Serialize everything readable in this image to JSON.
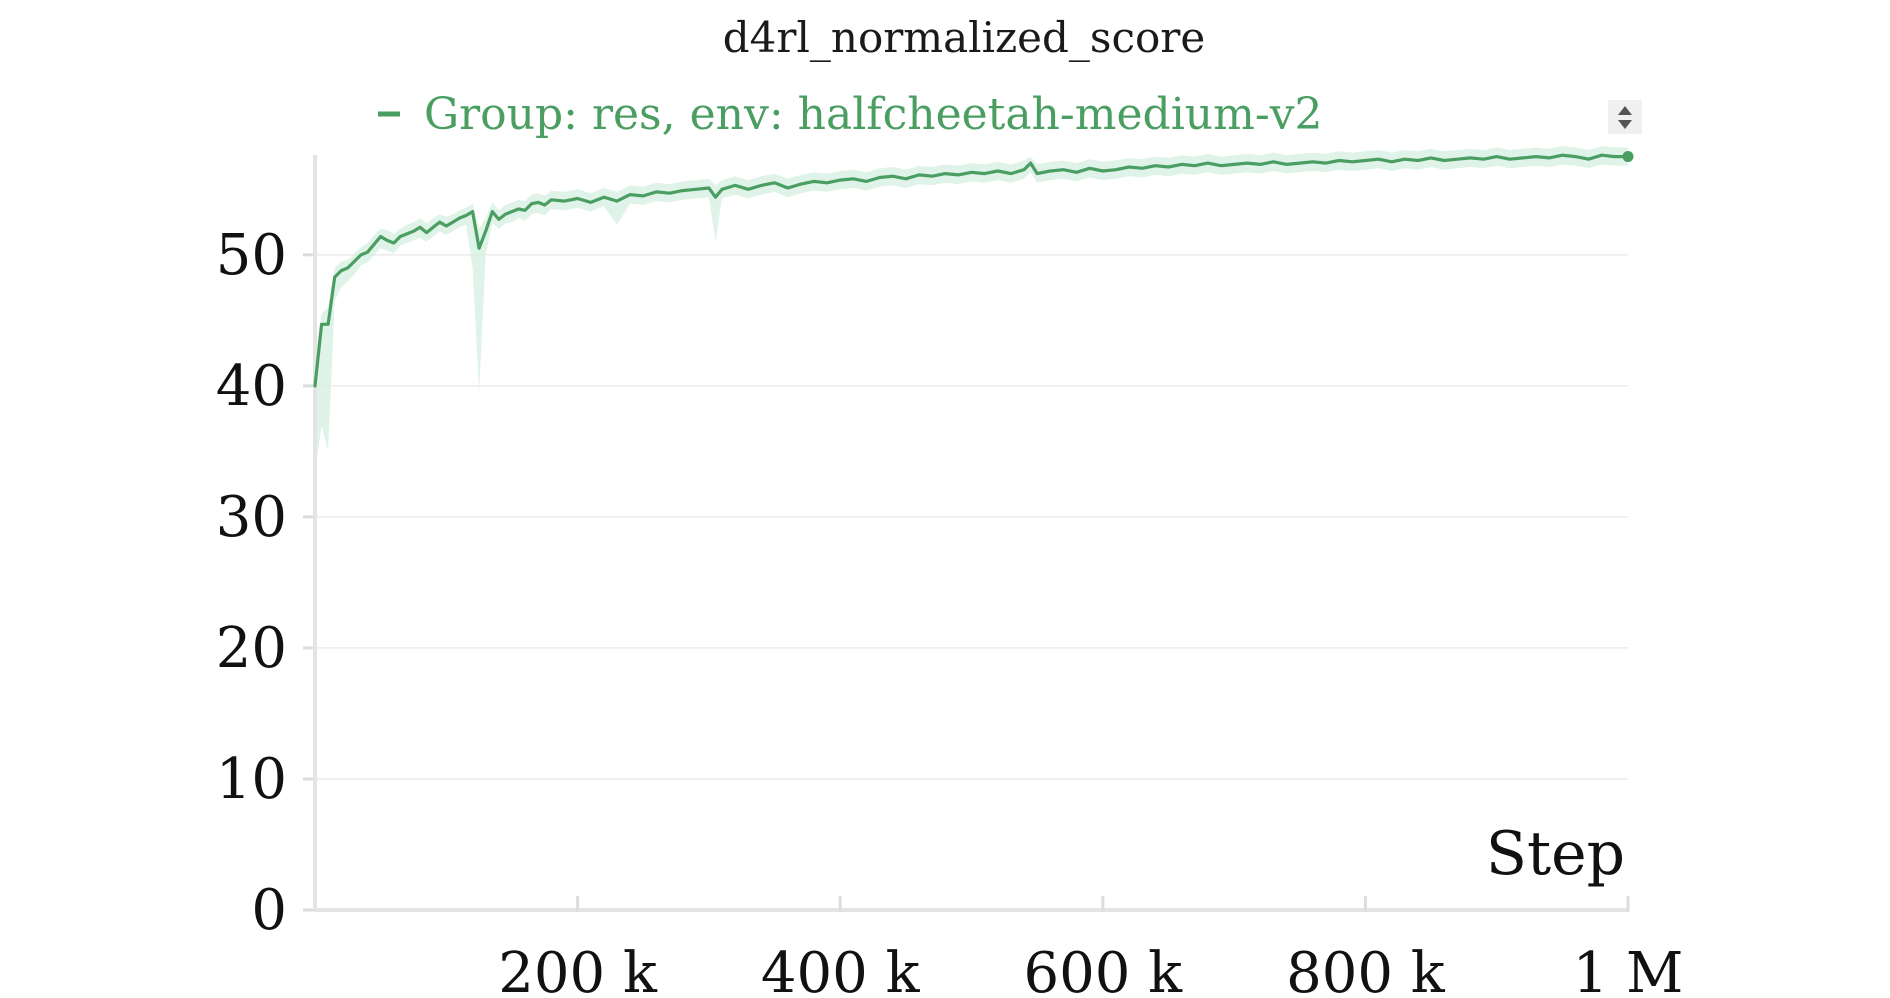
{
  "chart_data": {
    "type": "line",
    "title": "d4rl_normalized_score",
    "xlabel": "Step",
    "ylabel": "",
    "xlim": [
      0,
      1000000
    ],
    "ylim": [
      0,
      58
    ],
    "grid": true,
    "legend": "top",
    "x_ticks": [
      {
        "value": 200000,
        "label": "200 k"
      },
      {
        "value": 400000,
        "label": "400 k"
      },
      {
        "value": 600000,
        "label": "600 k"
      },
      {
        "value": 800000,
        "label": "800 k"
      },
      {
        "value": 1000000,
        "label": "1 M"
      }
    ],
    "y_ticks": [
      {
        "value": 0,
        "label": "0"
      },
      {
        "value": 10,
        "label": "10"
      },
      {
        "value": 20,
        "label": "20"
      },
      {
        "value": 30,
        "label": "30"
      },
      {
        "value": 40,
        "label": "40"
      },
      {
        "value": 50,
        "label": "50"
      }
    ],
    "series": [
      {
        "name": "Group: res, env: halfcheetah-medium-v2",
        "color": "#4a9e62",
        "band_color": "#d6efe0",
        "x": [
          0,
          5000,
          10000,
          15000,
          20000,
          25000,
          30000,
          35000,
          40000,
          45000,
          50000,
          55000,
          60000,
          65000,
          70000,
          75000,
          80000,
          85000,
          90000,
          95000,
          100000,
          105000,
          110000,
          115000,
          120000,
          125000,
          130000,
          135000,
          140000,
          145000,
          150000,
          155000,
          160000,
          165000,
          170000,
          175000,
          180000,
          190000,
          200000,
          210000,
          220000,
          230000,
          240000,
          250000,
          260000,
          270000,
          280000,
          290000,
          300000,
          305000,
          310000,
          320000,
          330000,
          340000,
          350000,
          360000,
          370000,
          380000,
          390000,
          400000,
          410000,
          420000,
          430000,
          440000,
          450000,
          460000,
          470000,
          480000,
          490000,
          500000,
          510000,
          520000,
          530000,
          540000,
          545000,
          550000,
          560000,
          570000,
          580000,
          590000,
          600000,
          610000,
          620000,
          630000,
          640000,
          650000,
          660000,
          670000,
          680000,
          690000,
          700000,
          710000,
          720000,
          730000,
          740000,
          750000,
          760000,
          770000,
          780000,
          790000,
          800000,
          810000,
          820000,
          830000,
          840000,
          850000,
          860000,
          870000,
          880000,
          890000,
          900000,
          910000,
          920000,
          930000,
          940000,
          950000,
          960000,
          970000,
          980000,
          990000,
          1000000
        ],
        "values": [
          40.0,
          44.7,
          44.7,
          48.3,
          48.8,
          49.0,
          49.5,
          50.0,
          50.2,
          50.8,
          51.4,
          51.1,
          50.9,
          51.4,
          51.6,
          51.8,
          52.1,
          51.7,
          52.1,
          52.5,
          52.2,
          52.5,
          52.8,
          53.0,
          53.3,
          50.5,
          51.8,
          53.3,
          52.7,
          53.1,
          53.3,
          53.5,
          53.4,
          53.9,
          54.0,
          53.8,
          54.2,
          54.1,
          54.3,
          54.0,
          54.4,
          54.1,
          54.6,
          54.5,
          54.8,
          54.7,
          54.9,
          55.0,
          55.1,
          54.4,
          55.0,
          55.3,
          55.0,
          55.3,
          55.5,
          55.1,
          55.4,
          55.6,
          55.5,
          55.7,
          55.8,
          55.6,
          55.9,
          56.0,
          55.8,
          56.1,
          56.0,
          56.2,
          56.1,
          56.3,
          56.2,
          56.4,
          56.2,
          56.5,
          57.0,
          56.2,
          56.4,
          56.5,
          56.3,
          56.6,
          56.4,
          56.5,
          56.7,
          56.6,
          56.8,
          56.7,
          56.9,
          56.8,
          57.0,
          56.8,
          56.9,
          57.0,
          56.9,
          57.1,
          56.9,
          57.0,
          57.1,
          57.0,
          57.2,
          57.1,
          57.2,
          57.3,
          57.1,
          57.3,
          57.2,
          57.4,
          57.2,
          57.3,
          57.4,
          57.3,
          57.5,
          57.3,
          57.4,
          57.5,
          57.4,
          57.6,
          57.5,
          57.3,
          57.6,
          57.5,
          57.5
        ],
        "upper": [
          42.0,
          45.5,
          46.0,
          49.0,
          49.5,
          49.6,
          50.1,
          50.6,
          50.9,
          51.5,
          52.0,
          51.9,
          51.6,
          52.0,
          52.3,
          52.5,
          52.8,
          52.4,
          52.8,
          53.1,
          52.9,
          53.1,
          53.4,
          53.6,
          53.9,
          52.0,
          52.8,
          54.0,
          53.4,
          53.8,
          54.0,
          54.2,
          54.1,
          54.6,
          54.7,
          54.5,
          54.9,
          54.8,
          55.0,
          54.7,
          55.1,
          54.8,
          55.3,
          55.2,
          55.5,
          55.4,
          55.6,
          55.7,
          55.8,
          55.3,
          55.7,
          56.0,
          55.7,
          56.0,
          56.2,
          55.8,
          56.1,
          56.3,
          56.2,
          56.4,
          56.5,
          56.3,
          56.6,
          56.7,
          56.5,
          56.8,
          56.7,
          56.9,
          56.8,
          57.0,
          56.9,
          57.1,
          56.9,
          57.2,
          57.5,
          56.9,
          57.1,
          57.2,
          57.0,
          57.3,
          57.1,
          57.2,
          57.4,
          57.3,
          57.5,
          57.4,
          57.6,
          57.5,
          57.7,
          57.5,
          57.6,
          57.7,
          57.6,
          57.8,
          57.6,
          57.7,
          57.8,
          57.7,
          57.9,
          57.8,
          57.9,
          58.0,
          57.8,
          58.0,
          57.9,
          58.1,
          57.9,
          58.0,
          58.1,
          58.0,
          58.2,
          58.0,
          58.1,
          58.2,
          58.1,
          58.3,
          58.2,
          58.0,
          58.3,
          58.2,
          58.2
        ],
        "lower": [
          33.5,
          37.0,
          35.0,
          46.5,
          47.5,
          48.0,
          48.5,
          49.2,
          49.4,
          50.0,
          50.5,
          50.3,
          50.1,
          50.7,
          50.9,
          51.1,
          51.3,
          51.0,
          51.4,
          51.8,
          51.5,
          51.8,
          52.1,
          52.3,
          49.0,
          39.5,
          50.0,
          52.4,
          52.0,
          52.4,
          52.5,
          52.8,
          52.6,
          53.1,
          53.2,
          53.0,
          53.5,
          53.4,
          53.6,
          53.3,
          53.7,
          52.3,
          53.9,
          53.8,
          54.1,
          54.0,
          54.2,
          54.3,
          54.4,
          51.0,
          54.3,
          54.6,
          54.3,
          54.6,
          54.8,
          54.4,
          54.7,
          54.9,
          54.8,
          55.0,
          55.1,
          54.9,
          55.2,
          55.3,
          55.1,
          55.4,
          55.3,
          55.5,
          55.4,
          55.6,
          55.5,
          55.7,
          55.5,
          55.8,
          56.3,
          55.5,
          55.7,
          55.8,
          55.6,
          55.9,
          55.7,
          55.8,
          56.0,
          55.9,
          56.1,
          56.0,
          56.2,
          56.1,
          56.3,
          56.1,
          56.2,
          56.3,
          56.2,
          56.4,
          56.2,
          56.3,
          56.4,
          56.3,
          56.5,
          56.4,
          56.5,
          56.6,
          56.4,
          56.6,
          56.5,
          56.7,
          56.5,
          56.6,
          56.7,
          56.6,
          56.8,
          56.6,
          56.7,
          56.8,
          56.7,
          56.9,
          56.8,
          56.6,
          56.9,
          56.8,
          56.8
        ]
      }
    ]
  }
}
